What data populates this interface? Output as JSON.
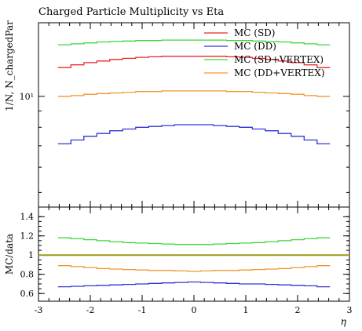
{
  "chart_data": [
    {
      "type": "line",
      "title": "Charged Particle Multiplicity vs Eta",
      "ylabel": "1/N, N_chargedPar",
      "yscale": "log",
      "xlim": [
        -3,
        3
      ],
      "ylim": [
        4.5,
        17
      ],
      "y_tick_labels": [
        {
          "value": 10,
          "label": "10¹"
        }
      ],
      "legend": "top-right",
      "x": [
        -2.5,
        -2.25,
        -2.0,
        -1.75,
        -1.5,
        -1.25,
        -1.0,
        -0.75,
        -0.5,
        -0.25,
        0.0,
        0.25,
        0.5,
        0.75,
        1.0,
        1.25,
        1.5,
        1.75,
        2.0,
        2.25,
        2.5
      ],
      "series": [
        {
          "name": "MC (SD)",
          "color": "#e8282b",
          "values": [
            12.3,
            12.55,
            12.75,
            12.9,
            13.05,
            13.15,
            13.25,
            13.3,
            13.35,
            13.35,
            13.35,
            13.35,
            13.35,
            13.3,
            13.25,
            13.15,
            13.05,
            12.9,
            12.75,
            12.55,
            12.3
          ]
        },
        {
          "name": "MC (DD)",
          "color": "#3333d6",
          "values": [
            7.1,
            7.3,
            7.5,
            7.65,
            7.8,
            7.9,
            8.0,
            8.05,
            8.1,
            8.15,
            8.15,
            8.15,
            8.1,
            8.05,
            8.0,
            7.9,
            7.8,
            7.65,
            7.5,
            7.3,
            7.1
          ]
        },
        {
          "name": "MC (SD+VERTEX)",
          "color": "#3fd63f",
          "values": [
            14.5,
            14.6,
            14.7,
            14.8,
            14.85,
            14.9,
            14.95,
            14.95,
            15.0,
            15.0,
            15.0,
            15.0,
            15.0,
            14.95,
            14.95,
            14.9,
            14.85,
            14.8,
            14.7,
            14.6,
            14.5
          ]
        },
        {
          "name": "MC (DD+VERTEX)",
          "color": "#f0962e",
          "values": [
            10.0,
            10.05,
            10.15,
            10.2,
            10.25,
            10.3,
            10.35,
            10.35,
            10.4,
            10.4,
            10.4,
            10.4,
            10.4,
            10.35,
            10.35,
            10.3,
            10.25,
            10.2,
            10.15,
            10.05,
            10.0
          ]
        }
      ]
    },
    {
      "type": "line",
      "xlabel": "η",
      "ylabel": "MC/data",
      "xlim": [
        -3,
        3
      ],
      "ylim": [
        0.52,
        1.5
      ],
      "x_ticks": [
        -3,
        -2,
        -1,
        0,
        1,
        2,
        3
      ],
      "y_ticks": [
        0.6,
        0.8,
        1,
        1.2,
        1.4
      ],
      "reference_line": {
        "value": 1.0,
        "color": "#9a9a1a"
      },
      "x": [
        -2.5,
        -2.25,
        -2.0,
        -1.75,
        -1.5,
        -1.25,
        -1.0,
        -0.75,
        -0.5,
        -0.25,
        0.0,
        0.25,
        0.5,
        0.75,
        1.0,
        1.25,
        1.5,
        1.75,
        2.0,
        2.25,
        2.5
      ],
      "series": [
        {
          "color": "#3fd63f",
          "values": [
            1.18,
            1.17,
            1.16,
            1.15,
            1.14,
            1.13,
            1.125,
            1.12,
            1.115,
            1.11,
            1.11,
            1.11,
            1.115,
            1.12,
            1.125,
            1.13,
            1.14,
            1.15,
            1.16,
            1.17,
            1.18
          ]
        },
        {
          "color": "#f0962e",
          "values": [
            0.89,
            0.88,
            0.87,
            0.86,
            0.855,
            0.85,
            0.845,
            0.84,
            0.84,
            0.835,
            0.83,
            0.835,
            0.84,
            0.84,
            0.845,
            0.85,
            0.855,
            0.86,
            0.87,
            0.88,
            0.89
          ]
        },
        {
          "color": "#3333d6",
          "values": [
            0.67,
            0.675,
            0.68,
            0.685,
            0.69,
            0.695,
            0.7,
            0.705,
            0.71,
            0.715,
            0.72,
            0.715,
            0.71,
            0.705,
            0.7,
            0.7,
            0.695,
            0.69,
            0.685,
            0.68,
            0.67
          ]
        }
      ]
    }
  ]
}
